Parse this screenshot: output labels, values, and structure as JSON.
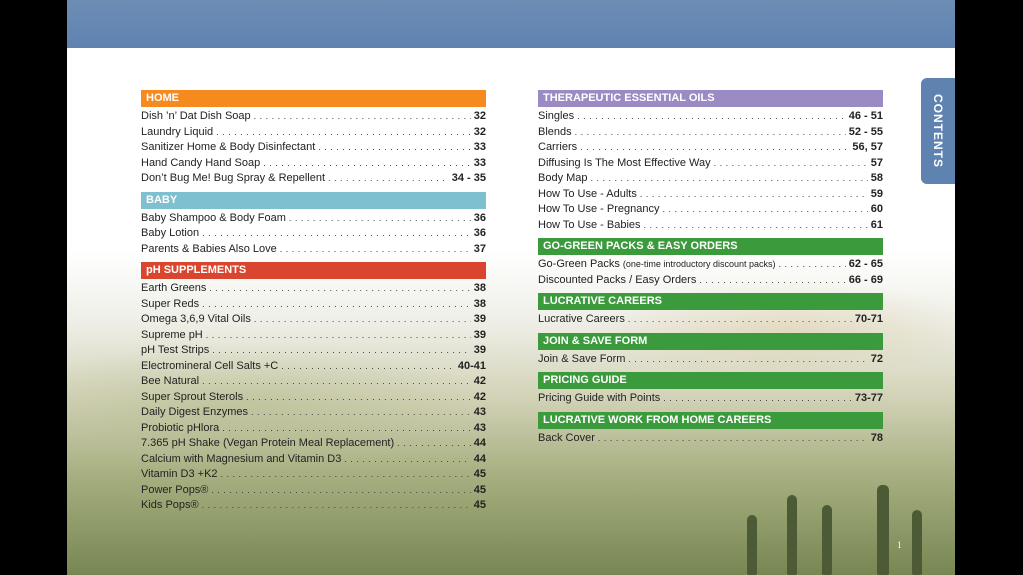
{
  "tab": {
    "label": "CONTENTS"
  },
  "page_number": "1",
  "colors": {
    "blue": "#5f83b0",
    "orange": "#f58a1f",
    "light_blue": "#7ec0cf",
    "red": "#d9452f",
    "purple": "#9b8bc4",
    "green": "#3b9a3b"
  },
  "left_sections": [
    {
      "title": "HOME",
      "color": "#f58a1f",
      "entries": [
        {
          "title": "Dish ’n’ Dat Dish Soap",
          "page": "32"
        },
        {
          "title": "Laundry Liquid",
          "page": "32"
        },
        {
          "title": "Sanitizer Home & Body Disinfectant",
          "page": "33"
        },
        {
          "title": "Hand Candy Hand Soap",
          "page": "33"
        },
        {
          "title": "Don’t Bug Me! Bug Spray & Repellent",
          "page": "34 - 35"
        }
      ]
    },
    {
      "title": "BABY",
      "color": "#7ec0cf",
      "entries": [
        {
          "title": "Baby Shampoo & Body Foam",
          "page": "36"
        },
        {
          "title": "Baby Lotion",
          "page": "36"
        },
        {
          "title": "Parents & Babies Also Love",
          "page": "37"
        }
      ]
    },
    {
      "title": "pH SUPPLEMENTS",
      "color": "#d9452f",
      "entries": [
        {
          "title": "Earth Greens",
          "page": "38"
        },
        {
          "title": "Super Reds",
          "page": "38"
        },
        {
          "title": "Omega 3,6,9 Vital Oils",
          "page": "39"
        },
        {
          "title": "Supreme pH",
          "page": "39"
        },
        {
          "title": "pH Test Strips",
          "page": "39"
        },
        {
          "title": "Electromineral Cell Salts +C",
          "page": "40-41"
        },
        {
          "title": "Bee Natural",
          "page": "42"
        },
        {
          "title": "Super Sprout Sterols",
          "page": "42"
        },
        {
          "title": "Daily Digest Enzymes",
          "page": "43"
        },
        {
          "title": "Probiotic pHlora",
          "page": "43"
        },
        {
          "title": "7.365 pH Shake (Vegan Protein Meal Replacement)",
          "page": "44"
        },
        {
          "title": "Calcium with Magnesium and Vitamin D3",
          "page": "44"
        },
        {
          "title": "Vitamin D3 +K2",
          "page": "45"
        },
        {
          "title": "Power Pops®",
          "page": "45"
        },
        {
          "title": "Kids Pops®",
          "page": "45"
        }
      ]
    }
  ],
  "right_sections": [
    {
      "title": "THERAPEUTIC ESSENTIAL OILS",
      "color": "#9b8bc4",
      "entries": [
        {
          "title": "Singles",
          "page": "46 - 51"
        },
        {
          "title": "Blends",
          "page": "52 - 55"
        },
        {
          "title": "Carriers",
          "page": "56, 57"
        },
        {
          "title": "Diffusing Is The Most Effective Way",
          "page": "57"
        },
        {
          "title": "Body Map",
          "page": "58"
        },
        {
          "title": "How To Use - Adults",
          "page": "59"
        },
        {
          "title": "How To Use - Pregnancy",
          "page": "60"
        },
        {
          "title": "How To Use - Babies",
          "page": "61"
        }
      ]
    },
    {
      "title": "GO-GREEN PACKS & EASY ORDERS",
      "color": "#3b9a3b",
      "entries": [
        {
          "title": "Go-Green Packs",
          "note": "(one-time introductory discount packs)",
          "page": "62 - 65"
        },
        {
          "title": "Discounted Packs / Easy Orders",
          "page": "66 - 69"
        }
      ]
    },
    {
      "title": "LUCRATIVE CAREERS",
      "color": "#3b9a3b",
      "entries": [
        {
          "title": "Lucrative Careers",
          "page": "70-71"
        }
      ]
    },
    {
      "title": "JOIN & SAVE FORM",
      "color": "#3b9a3b",
      "entries": [
        {
          "title": "Join & Save Form",
          "page": "72"
        }
      ]
    },
    {
      "title": "PRICING GUIDE",
      "color": "#3b9a3b",
      "entries": [
        {
          "title": "Pricing Guide with Points",
          "page": "73-77"
        }
      ]
    },
    {
      "title": "LUCRATIVE WORK FROM HOME CAREERS",
      "color": "#3b9a3b",
      "entries": [
        {
          "title": "Back Cover",
          "page": "78"
        }
      ]
    }
  ]
}
